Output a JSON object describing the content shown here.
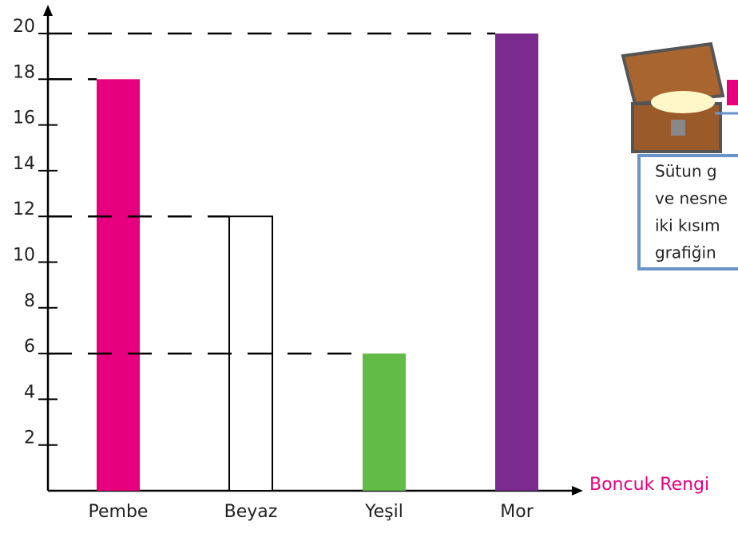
{
  "chart_data": {
    "type": "bar",
    "categories": [
      "Pembe",
      "Beyaz",
      "Yeşil",
      "Mor"
    ],
    "values": [
      18,
      12,
      6,
      20
    ],
    "colors": [
      "#e6007e",
      "#ffffff",
      "#62bb46",
      "#7b2a8f"
    ],
    "ylim": [
      0,
      20
    ],
    "yticks": [
      2,
      4,
      6,
      8,
      10,
      12,
      14,
      16,
      18,
      20
    ],
    "x_label": "Boncuk Rengi",
    "guide_lines": true
  },
  "info_box": {
    "lines": [
      "Sütun g",
      "ve nesne",
      "iki kısım",
      "grafiğin"
    ]
  }
}
